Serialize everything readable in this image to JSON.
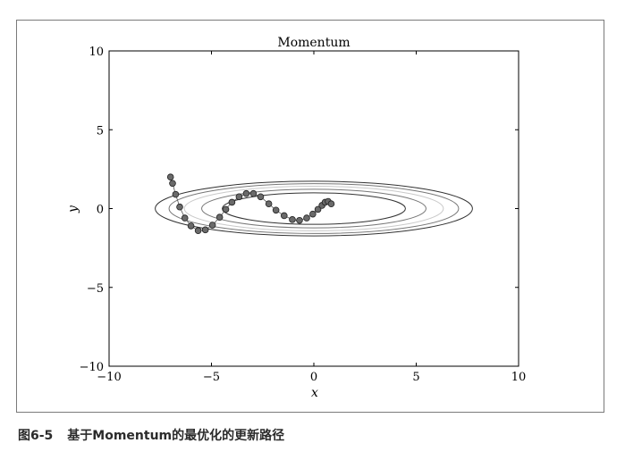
{
  "figure": {
    "number": "图6-5",
    "caption": "基于Momentum的最优化的更新路径"
  },
  "chart_data": {
    "type": "scatter",
    "title": "Momentum",
    "xlabel": "x",
    "ylabel": "y",
    "xlim": [
      -10,
      10
    ],
    "ylim": [
      -10,
      10
    ],
    "xticks": [
      "−10",
      "−5",
      "0",
      "5",
      "10"
    ],
    "yticks": [
      "−10",
      "−5",
      "0",
      "5",
      "10"
    ],
    "grid": false,
    "contour": {
      "function": "x^2/20 + y^2",
      "levels": [
        1,
        1.5,
        2,
        2.5,
        3
      ],
      "colors": [
        "#333333",
        "#777777",
        "#c9c9c9",
        "#777777",
        "#333333"
      ]
    },
    "path_color": "#6a6a6a",
    "path": [
      {
        "x": -7.0,
        "y": 2.0
      },
      {
        "x": -6.9,
        "y": 1.6
      },
      {
        "x": -6.75,
        "y": 0.9
      },
      {
        "x": -6.55,
        "y": 0.1
      },
      {
        "x": -6.3,
        "y": -0.6
      },
      {
        "x": -6.0,
        "y": -1.1
      },
      {
        "x": -5.65,
        "y": -1.4
      },
      {
        "x": -5.3,
        "y": -1.35
      },
      {
        "x": -4.95,
        "y": -1.05
      },
      {
        "x": -4.6,
        "y": -0.55
      },
      {
        "x": -4.3,
        "y": -0.05
      },
      {
        "x": -4.0,
        "y": 0.4
      },
      {
        "x": -3.65,
        "y": 0.75
      },
      {
        "x": -3.3,
        "y": 0.95
      },
      {
        "x": -2.95,
        "y": 0.95
      },
      {
        "x": -2.6,
        "y": 0.75
      },
      {
        "x": -2.2,
        "y": 0.3
      },
      {
        "x": -1.85,
        "y": -0.1
      },
      {
        "x": -1.45,
        "y": -0.45
      },
      {
        "x": -1.05,
        "y": -0.7
      },
      {
        "x": -0.7,
        "y": -0.75
      },
      {
        "x": -0.35,
        "y": -0.6
      },
      {
        "x": -0.05,
        "y": -0.35
      },
      {
        "x": 0.2,
        "y": -0.05
      },
      {
        "x": 0.4,
        "y": 0.2
      },
      {
        "x": 0.55,
        "y": 0.4
      },
      {
        "x": 0.7,
        "y": 0.45
      },
      {
        "x": 0.85,
        "y": 0.3
      }
    ]
  }
}
